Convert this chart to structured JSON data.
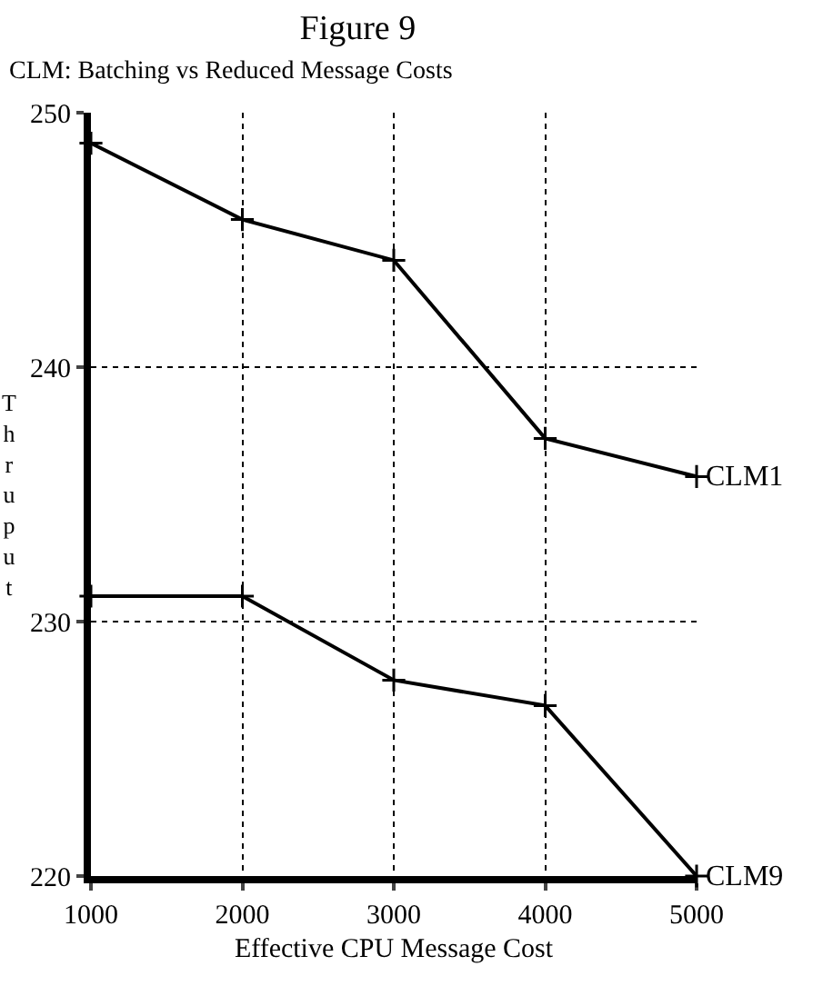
{
  "chart_data": {
    "type": "line",
    "title": "Figure 9",
    "subtitle": "CLM: Batching vs Reduced Message Costs",
    "xlabel": "Effective CPU Message Cost",
    "ylabel": "Thruput",
    "x": [
      1000,
      2000,
      3000,
      4000,
      5000
    ],
    "series": [
      {
        "name": "CLM1",
        "color": "#000000",
        "values": [
          248.8,
          245.8,
          244.2,
          237.2,
          235.7
        ]
      },
      {
        "name": "CLM9",
        "color": "#000000",
        "values": [
          231.0,
          231.0,
          227.7,
          226.7,
          220.0
        ]
      }
    ],
    "xlim": [
      1000,
      5000
    ],
    "xticks": [
      1000,
      2000,
      3000,
      4000,
      5000
    ],
    "ylim": [
      220,
      250
    ],
    "yticks": [
      220,
      230,
      240,
      250
    ],
    "grid": true,
    "legend": false,
    "marker": "cross",
    "line_style": "solid"
  }
}
